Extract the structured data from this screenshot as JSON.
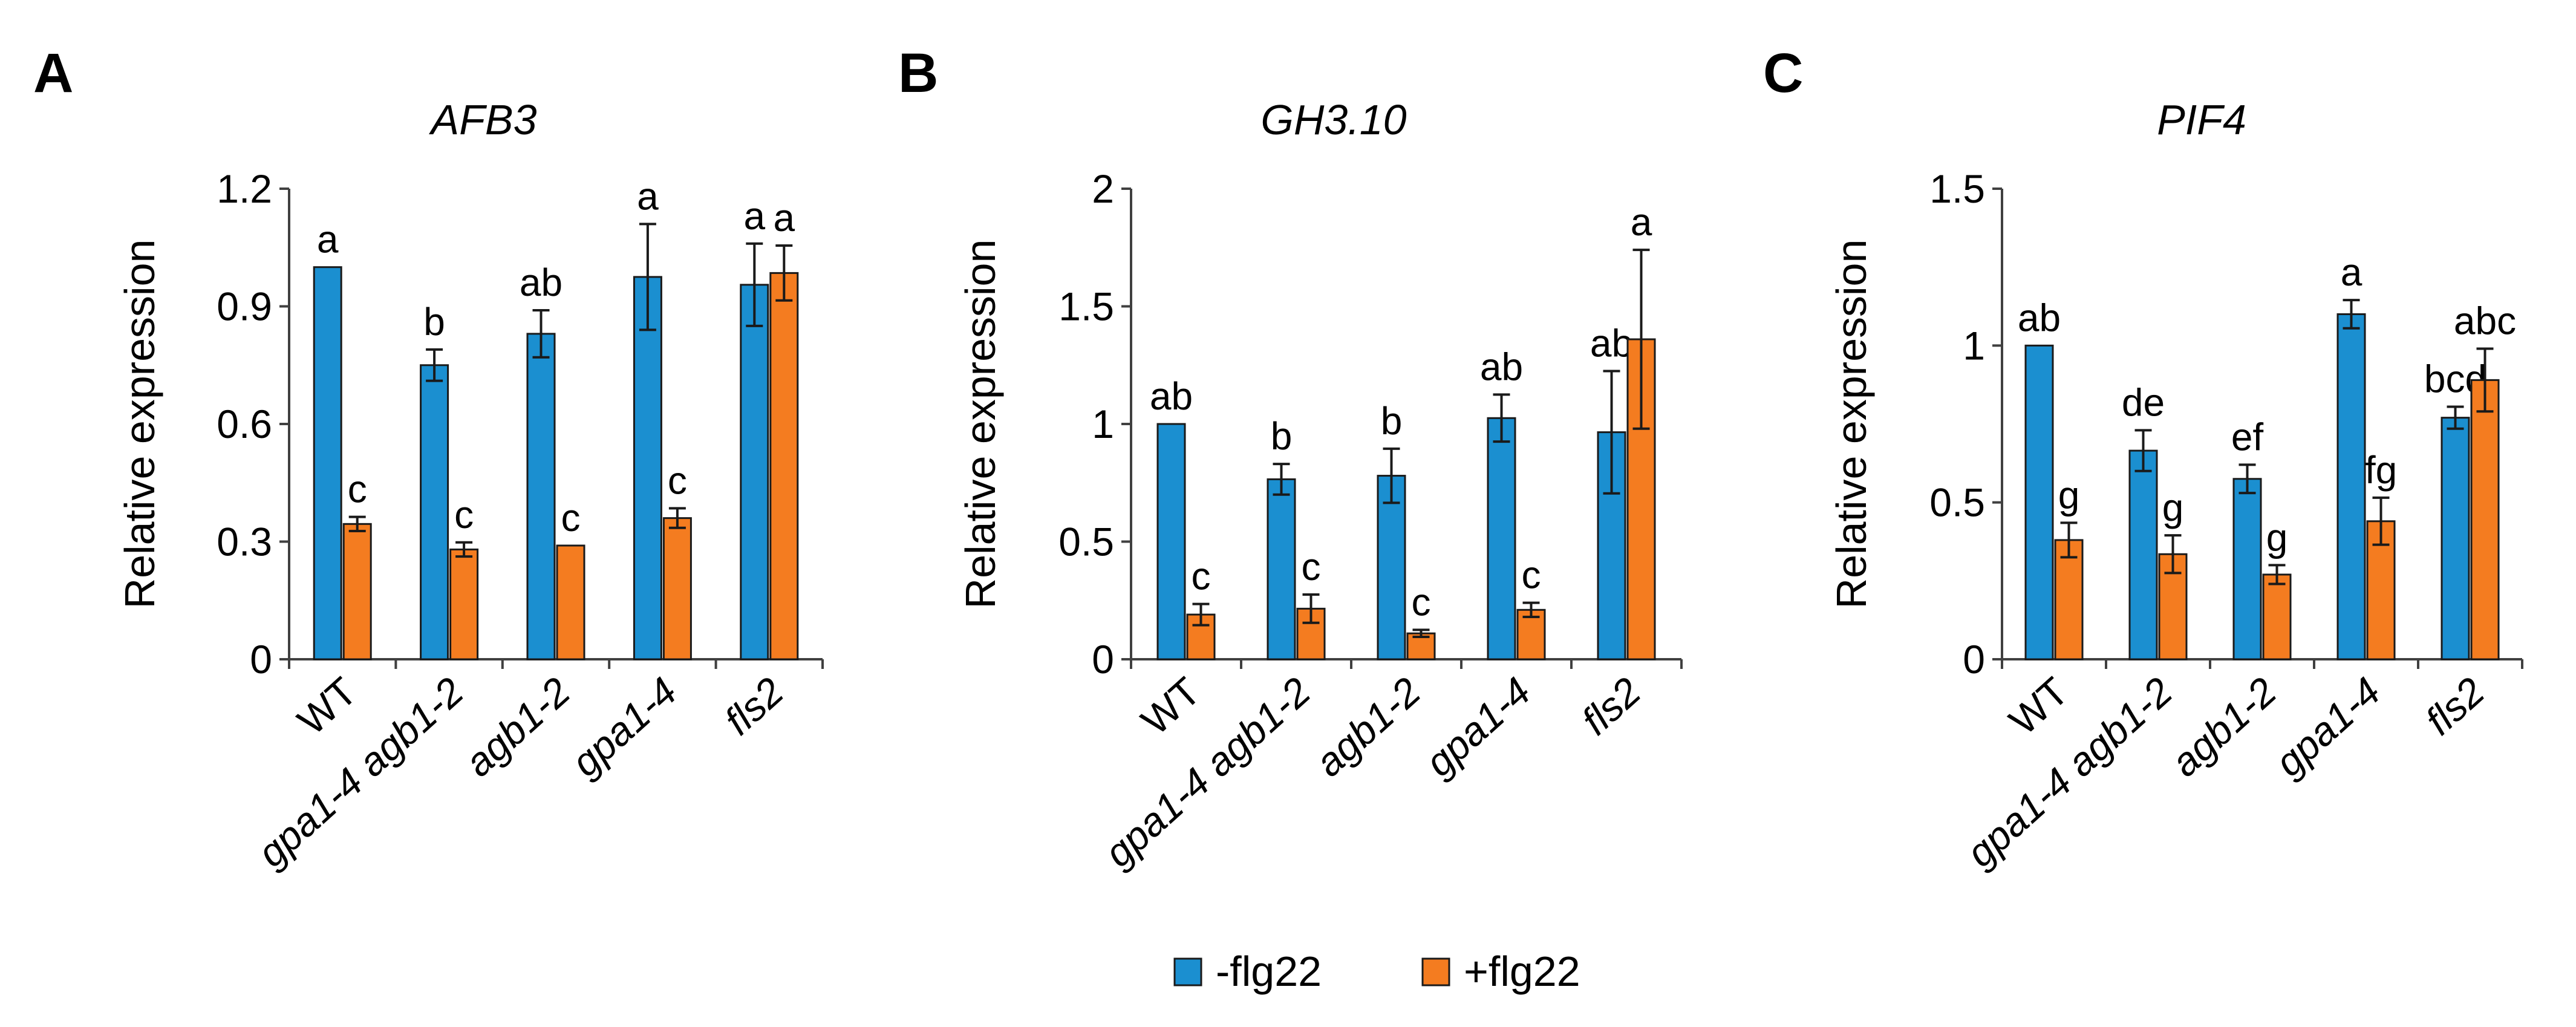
{
  "colors": {
    "minus": "#1b8fd0",
    "plus": "#f47c20"
  },
  "legend": [
    {
      "label": "-flg22",
      "color": "#1b8fd0"
    },
    {
      "label": "+flg22",
      "color": "#f47c20"
    }
  ],
  "chart_data": [
    {
      "panel": "A",
      "type": "bar",
      "title": "AFB3",
      "ylabel": "Relative expression",
      "xlabel": "",
      "ylim": [
        0,
        1.2
      ],
      "yticks": [
        "0",
        "0.3",
        "0.6",
        "0.9",
        "1.2"
      ],
      "categories": [
        {
          "label": "WT",
          "italic": false
        },
        {
          "label": "gpa1-4 agb1-2",
          "italic": true
        },
        {
          "label": "agb1-2",
          "italic": true
        },
        {
          "label": "gpa1-4",
          "italic": true
        },
        {
          "label": "fls2",
          "italic": true
        }
      ],
      "series": [
        {
          "name": "-flg22",
          "values": [
            1.0,
            0.75,
            0.83,
            0.975,
            0.955
          ],
          "errors": [
            0.0,
            0.04,
            0.06,
            0.135,
            0.105
          ],
          "letters": [
            "a",
            "b",
            "ab",
            "a",
            "a"
          ]
        },
        {
          "name": "+flg22",
          "values": [
            0.345,
            0.28,
            0.29,
            0.36,
            0.985
          ],
          "errors": [
            0.018,
            0.018,
            0.0,
            0.025,
            0.07
          ],
          "letters": [
            "c",
            "c",
            "c",
            "c",
            "a"
          ]
        }
      ]
    },
    {
      "panel": "B",
      "type": "bar",
      "title": "GH3.10",
      "ylabel": "Relative expression",
      "xlabel": "",
      "ylim": [
        0,
        2
      ],
      "yticks": [
        "0",
        "0.5",
        "1",
        "1.5",
        "2"
      ],
      "categories": [
        {
          "label": "WT",
          "italic": false
        },
        {
          "label": "gpa1-4 agb1-2",
          "italic": true
        },
        {
          "label": "agb1-2",
          "italic": true
        },
        {
          "label": "gpa1-4",
          "italic": true
        },
        {
          "label": "fls2",
          "italic": true
        }
      ],
      "series": [
        {
          "name": "-flg22",
          "values": [
            1.0,
            0.765,
            0.78,
            1.025,
            0.965
          ],
          "errors": [
            0.0,
            0.065,
            0.115,
            0.1,
            0.26
          ],
          "letters": [
            "ab",
            "b",
            "b",
            "ab",
            "ab"
          ]
        },
        {
          "name": "+flg22",
          "values": [
            0.19,
            0.215,
            0.11,
            0.21,
            1.36
          ],
          "errors": [
            0.045,
            0.06,
            0.015,
            0.03,
            0.38
          ],
          "letters": [
            "c",
            "c",
            "c",
            "c",
            "a"
          ]
        }
      ]
    },
    {
      "panel": "C",
      "type": "bar",
      "title": "PIF4",
      "ylabel": "Relative expression",
      "xlabel": "",
      "ylim": [
        0,
        1.5
      ],
      "yticks": [
        "0",
        "0.5",
        "1",
        "1.5"
      ],
      "categories": [
        {
          "label": "WT",
          "italic": false
        },
        {
          "label": "gpa1-4 agb1-2",
          "italic": true
        },
        {
          "label": "agb1-2",
          "italic": true
        },
        {
          "label": "gpa1-4",
          "italic": true
        },
        {
          "label": "fls2",
          "italic": true
        }
      ],
      "series": [
        {
          "name": "-flg22",
          "values": [
            1.0,
            0.665,
            0.575,
            1.1,
            0.77
          ],
          "errors": [
            0.0,
            0.065,
            0.045,
            0.045,
            0.035
          ],
          "letters": [
            "ab",
            "de",
            "ef",
            "a",
            "bcd"
          ]
        },
        {
          "name": "+flg22",
          "values": [
            0.38,
            0.335,
            0.27,
            0.44,
            0.89
          ],
          "errors": [
            0.055,
            0.06,
            0.03,
            0.075,
            0.1
          ],
          "letters": [
            "g",
            "g",
            "g",
            "fg",
            "abc"
          ]
        }
      ]
    }
  ]
}
